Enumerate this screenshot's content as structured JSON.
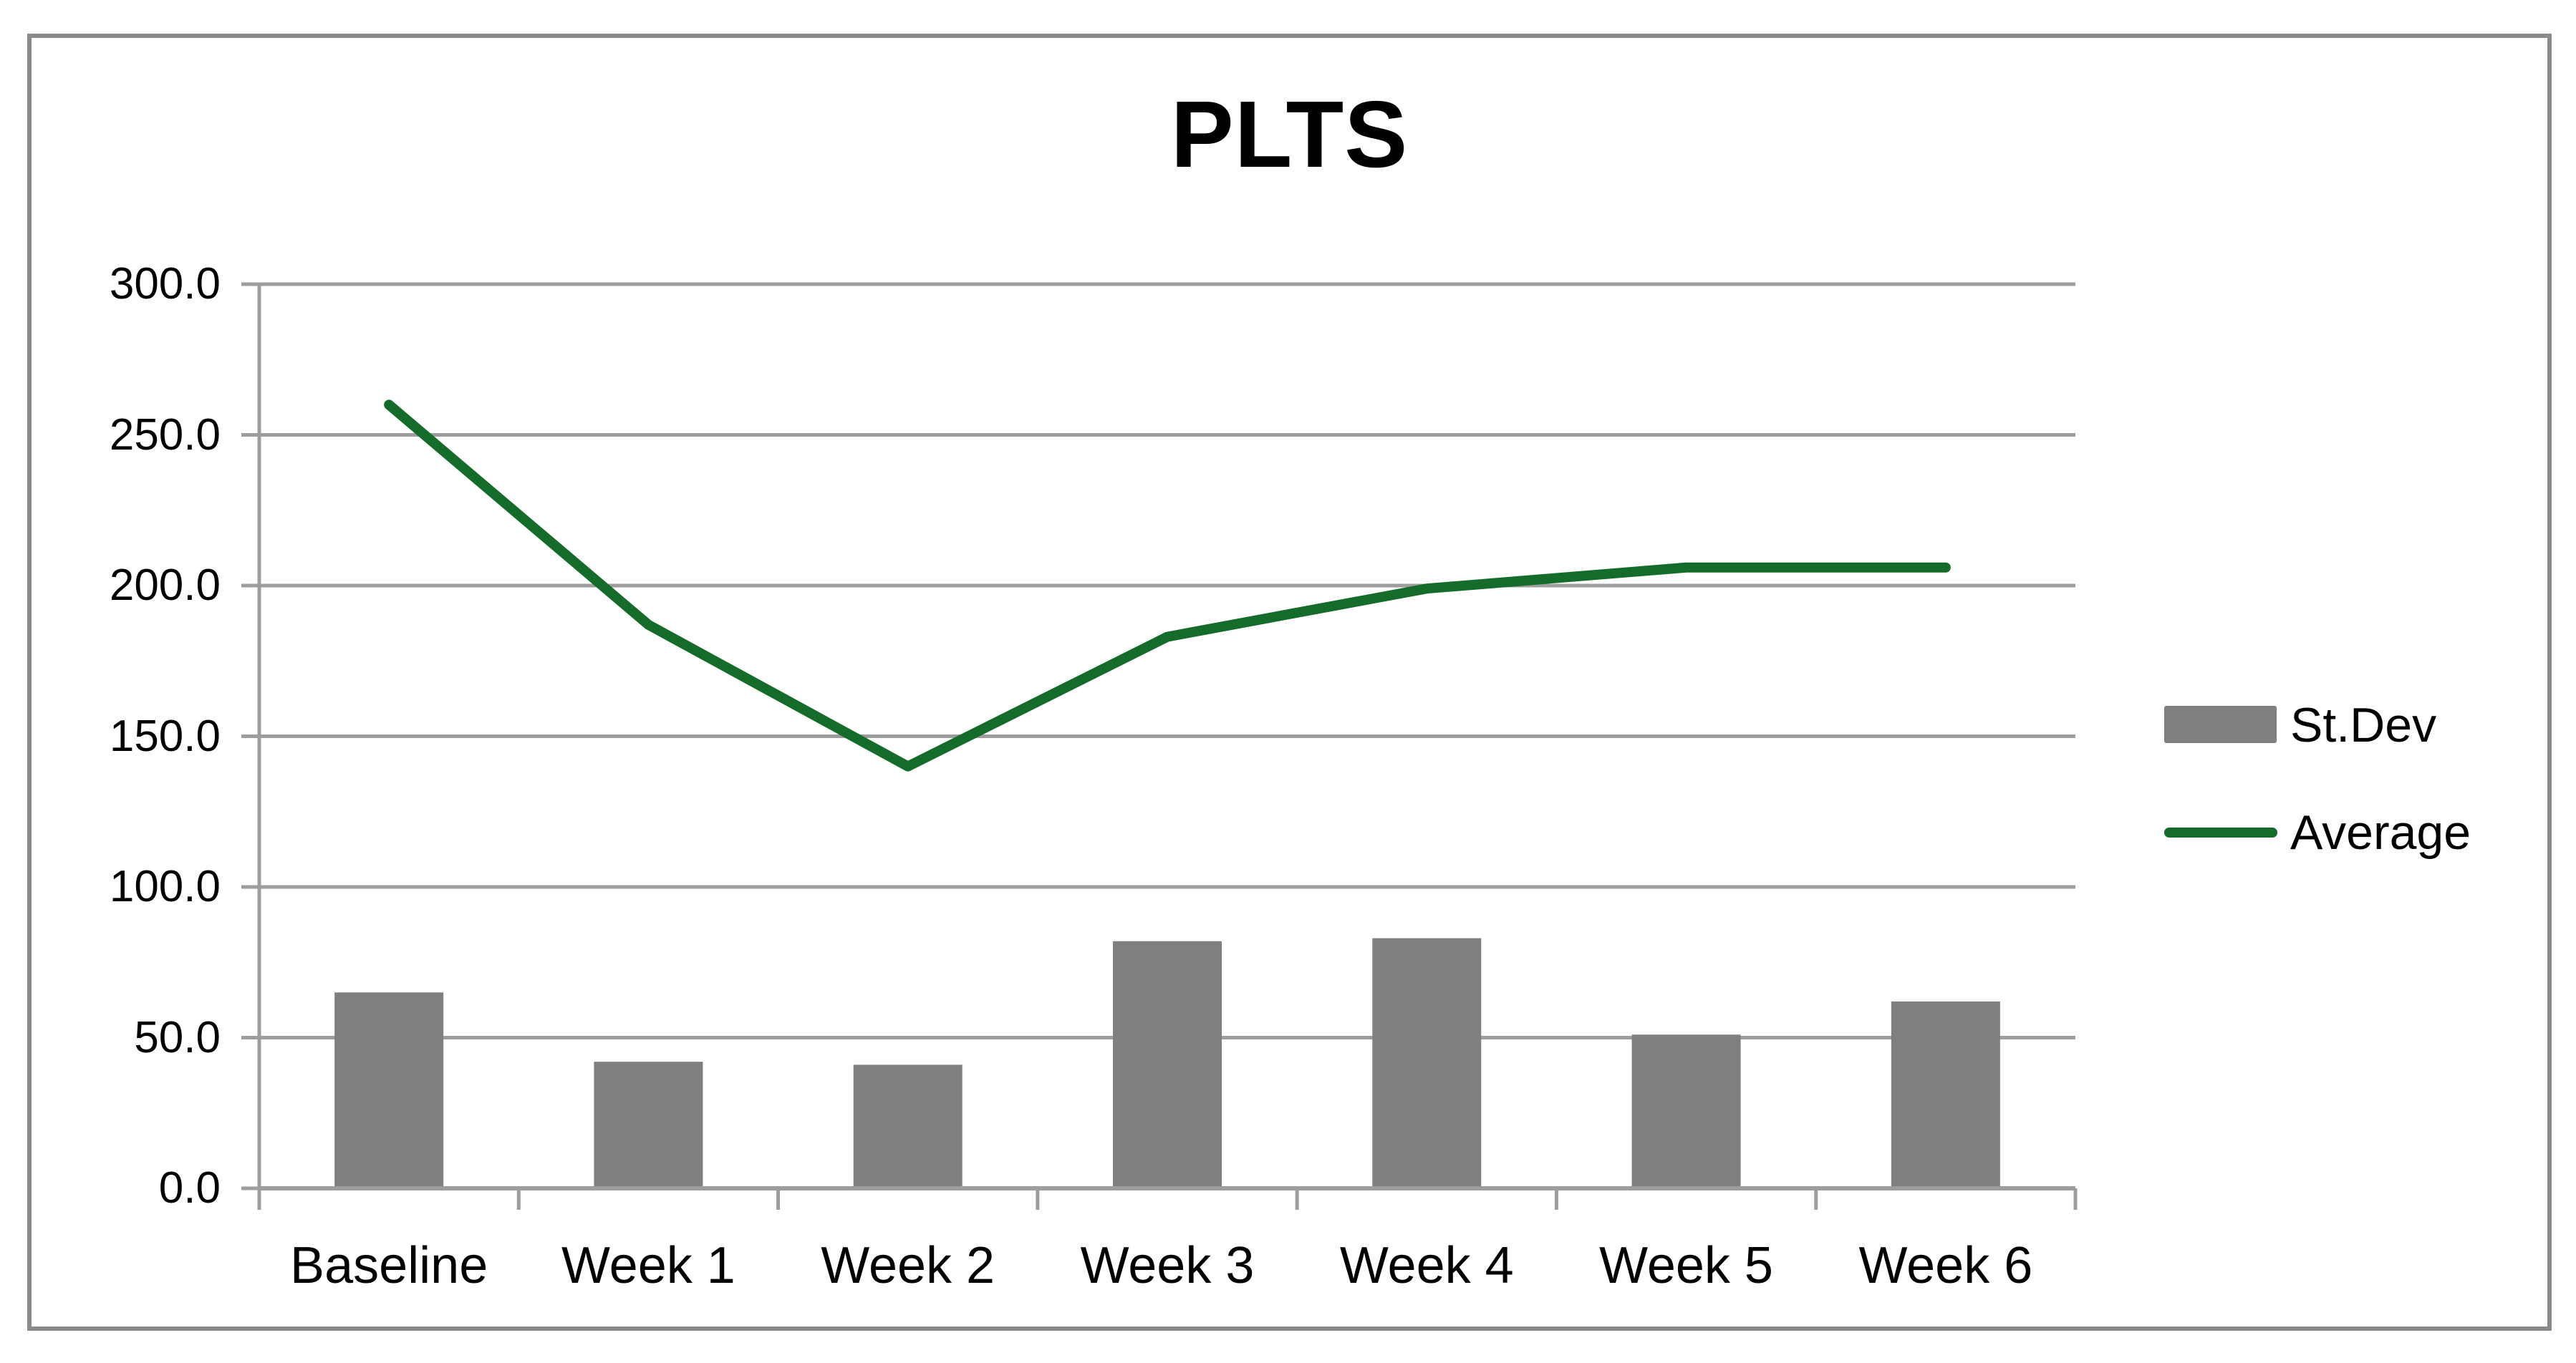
{
  "title": "PLTS",
  "legend": {
    "items": [
      {
        "label": "St.Dev",
        "swatch": "bar"
      },
      {
        "label": "Average",
        "swatch": "line"
      }
    ]
  },
  "colors": {
    "bar": "#7f7f7f",
    "line": "#146b2a",
    "grid": "#9d9d9d",
    "axis": "#9d9d9d",
    "border": "#8a8a8a",
    "text": "#000000"
  },
  "chart_data": {
    "type": "combo",
    "categories": [
      "Baseline",
      "Week 1",
      "Week 2",
      "Week 3",
      "Week 4",
      "Week 5",
      "Week 6"
    ],
    "series": [
      {
        "name": "St.Dev",
        "type": "bar",
        "color": "#7f7f7f",
        "values": [
          65,
          42,
          41,
          82,
          83,
          51,
          62
        ]
      },
      {
        "name": "Average",
        "type": "line",
        "color": "#146b2a",
        "values": [
          260,
          187,
          140,
          183,
          199,
          206,
          206
        ]
      }
    ],
    "title": "PLTS",
    "xlabel": "",
    "ylabel": "",
    "ylim": [
      0,
      300
    ],
    "yticks": [
      0,
      50,
      100,
      150,
      200,
      250,
      300
    ],
    "ytick_labels": [
      "0.0",
      "50.0",
      "100.0",
      "150.0",
      "200.0",
      "250.0",
      "300.0"
    ],
    "grid": true,
    "legend_position": "right"
  }
}
